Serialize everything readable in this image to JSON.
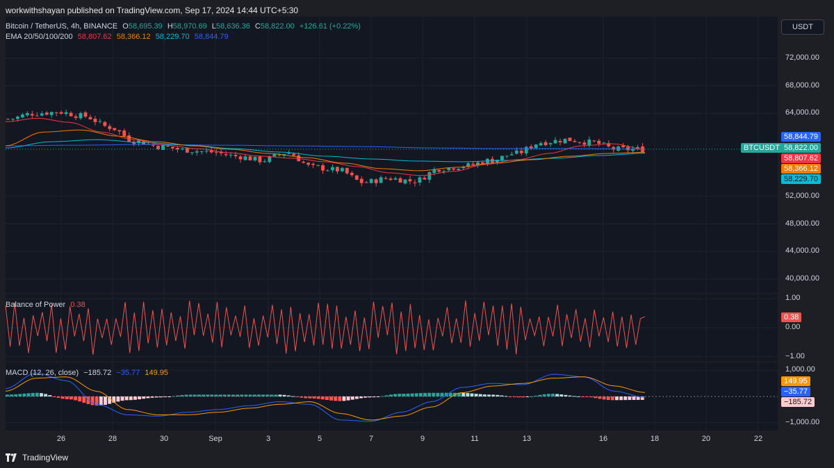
{
  "header": {
    "published_text": "workwithshayan published on TradingView.com, Sep 17, 2024 14:44 UTC+5:30"
  },
  "footer": {
    "brand": "TradingView",
    "brand_icon": "tradingview-logo-icon"
  },
  "currency_button": "USDT",
  "colors": {
    "up": "#26a69a",
    "down": "#ef5350",
    "ema20": "#f23645",
    "ema50": "#f57c00",
    "ema100": "#00bcd4",
    "ema200": "#2962ff",
    "bop": "#ef5350",
    "macd": "#2962ff",
    "signal": "#ff9800"
  },
  "chart_data": [
    {
      "type": "candlestick",
      "title": "Bitcoin / TetherUS, 4h, BINANCE",
      "ohlc_label": {
        "o": "O",
        "o_val": "58,695.39",
        "h": "H",
        "h_val": "58,970.69",
        "l": "L",
        "l_val": "58,636.36",
        "c": "C",
        "c_val": "58,822.00",
        "change": "+126.61 (+0.22%)"
      },
      "indicator_name": "EMA 20/50/100/200",
      "ema_values": [
        "58,807.62",
        "58,366.12",
        "58,229.70",
        "58,844.79"
      ],
      "symbol_tag": "BTCUSDT",
      "last_price_label": "58,822.00",
      "ylim": [
        38000,
        78000
      ],
      "yticks": [
        "72,000.00",
        "68,000.00",
        "64,000.00",
        "52,000.00",
        "48,000.00",
        "44,000.00",
        "40,000.00"
      ],
      "ytick_values": [
        72000,
        68000,
        64000,
        52000,
        48000,
        44000,
        40000
      ],
      "xticks": [
        "26",
        "28",
        "30",
        "Sep",
        "3",
        "5",
        "7",
        "9",
        "11",
        "13",
        "16",
        "18",
        "20",
        "22"
      ],
      "close_anchors": [
        63200,
        64000,
        64200,
        63600,
        62000,
        60000,
        59200,
        58700,
        58400,
        57800,
        57200,
        58300,
        56200,
        55800,
        54000,
        54600,
        54200,
        56000,
        56400,
        57200,
        58200,
        59800,
        60200,
        59800,
        58800,
        58822
      ],
      "ema20_anchors": [
        62800,
        63300,
        62700,
        61300,
        60200,
        59400,
        58900,
        58300,
        57800,
        57500,
        57000,
        56300,
        55400,
        55000,
        55600,
        56600,
        57300,
        58200,
        59300,
        59600,
        58807.62
      ],
      "ema50_anchors": [
        59300,
        61300,
        61600,
        60700,
        59900,
        59300,
        58800,
        58200,
        57600,
        56800,
        56000,
        55700,
        56200,
        56800,
        57300,
        57800,
        58200,
        58366.12
      ],
      "ema100_anchors": [
        59000,
        59900,
        60200,
        59800,
        59400,
        58900,
        58400,
        57800,
        57400,
        57100,
        57000,
        57200,
        57500,
        57900,
        58229.7
      ],
      "ema200_anchors": [
        59300,
        59400,
        59500,
        59400,
        59300,
        59200,
        59000,
        58900,
        58900,
        58844.79
      ]
    },
    {
      "type": "line",
      "title": "Balance of Power",
      "last_value": "0.38",
      "ylim": [
        -1.15,
        1.15
      ],
      "yticks": [
        "1.00",
        "0.00",
        "−1.00"
      ],
      "ytick_values": [
        1,
        0,
        -1
      ]
    },
    {
      "type": "bar+line",
      "title": "MACD (12, 26, close)",
      "values": [
        "−185.72",
        "−35.77",
        "149.95"
      ],
      "labels": {
        "histogram": "−185.72",
        "macd": "−35.77",
        "signal": "149.95"
      },
      "ylim": [
        -1300,
        1300
      ],
      "yticks": [
        "1,000.00",
        "−1,000.00"
      ],
      "ytick_values": [
        1000,
        -1000
      ],
      "macd_anchors": [
        300,
        900,
        600,
        -300,
        -700,
        -750,
        -600,
        -500,
        -350,
        -200,
        -300,
        -900,
        -950,
        -600,
        -200,
        350,
        500,
        450,
        850,
        750,
        200,
        -35.77
      ],
      "signal_anchors": [
        200,
        700,
        750,
        200,
        -500,
        -700,
        -700,
        -600,
        -450,
        -300,
        -200,
        -650,
        -900,
        -750,
        -400,
        150,
        400,
        500,
        700,
        750,
        400,
        149.95
      ]
    }
  ]
}
